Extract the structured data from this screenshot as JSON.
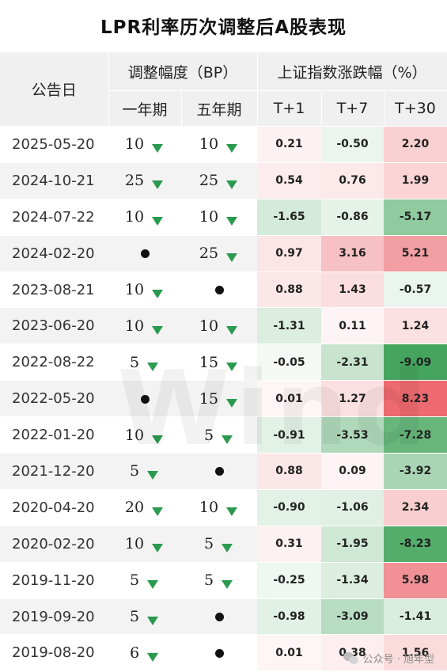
{
  "title": "LPR利率历次调整后A股表现",
  "header": {
    "date_col": "公告日",
    "bp_group": "调整幅度（BP）",
    "one_year": "一年期",
    "five_year": "五年期",
    "market_group": "上证指数涨跌幅（%）",
    "t1": "T+1",
    "t7": "T+7",
    "t30": "T+30"
  },
  "rows": [
    {
      "date": "2025-05-20",
      "y1": "10",
      "y5": "10",
      "t1": "0.21",
      "t7": "-0.50",
      "t30": "2.20"
    },
    {
      "date": "2024-10-21",
      "y1": "25",
      "y5": "25",
      "t1": "0.54",
      "t7": "0.76",
      "t30": "1.99"
    },
    {
      "date": "2024-07-22",
      "y1": "10",
      "y5": "10",
      "t1": "-1.65",
      "t7": "-0.86",
      "t30": "-5.17"
    },
    {
      "date": "2024-02-20",
      "y1": "",
      "y5": "25",
      "t1": "0.97",
      "t7": "3.16",
      "t30": "5.21"
    },
    {
      "date": "2023-08-21",
      "y1": "10",
      "y5": "",
      "t1": "0.88",
      "t7": "1.43",
      "t30": "-0.57"
    },
    {
      "date": "2023-06-20",
      "y1": "10",
      "y5": "10",
      "t1": "-1.31",
      "t7": "0.11",
      "t30": "1.24"
    },
    {
      "date": "2022-08-22",
      "y1": "5",
      "y5": "15",
      "t1": "-0.05",
      "t7": "-2.31",
      "t30": "-9.09"
    },
    {
      "date": "2022-05-20",
      "y1": "",
      "y5": "15",
      "t1": "0.01",
      "t7": "1.27",
      "t30": "8.23"
    },
    {
      "date": "2022-01-20",
      "y1": "10",
      "y5": "5",
      "t1": "-0.91",
      "t7": "-3.53",
      "t30": "-7.28"
    },
    {
      "date": "2021-12-20",
      "y1": "5",
      "y5": "",
      "t1": "0.88",
      "t7": "0.09",
      "t30": "-3.92"
    },
    {
      "date": "2020-04-20",
      "y1": "20",
      "y5": "10",
      "t1": "-0.90",
      "t7": "-1.06",
      "t30": "2.34"
    },
    {
      "date": "2020-02-20",
      "y1": "10",
      "y5": "5",
      "t1": "0.31",
      "t7": "-1.95",
      "t30": "-8.23"
    },
    {
      "date": "2019-11-20",
      "y1": "5",
      "y5": "5",
      "t1": "-0.25",
      "t7": "-1.34",
      "t30": "5.98"
    },
    {
      "date": "2019-09-20",
      "y1": "5",
      "y5": "",
      "t1": "-0.98",
      "t7": "-3.09",
      "t30": "-1.41"
    },
    {
      "date": "2019-08-20",
      "y1": "6",
      "y5": "",
      "t1": "0.01",
      "t7": "0.38",
      "t30": "1.56"
    }
  ],
  "icons": {
    "decrease": "green-down-triangle-icon",
    "unchanged": "black-dot-icon"
  },
  "colors": {
    "positive": "#e8474f",
    "negative": "#2e9a4a",
    "header_bg": "#f0f0f0",
    "down_arrow": "#2a9a4f"
  },
  "watermark": "Wind",
  "footer": {
    "source": "公众号 · 旭年型"
  }
}
